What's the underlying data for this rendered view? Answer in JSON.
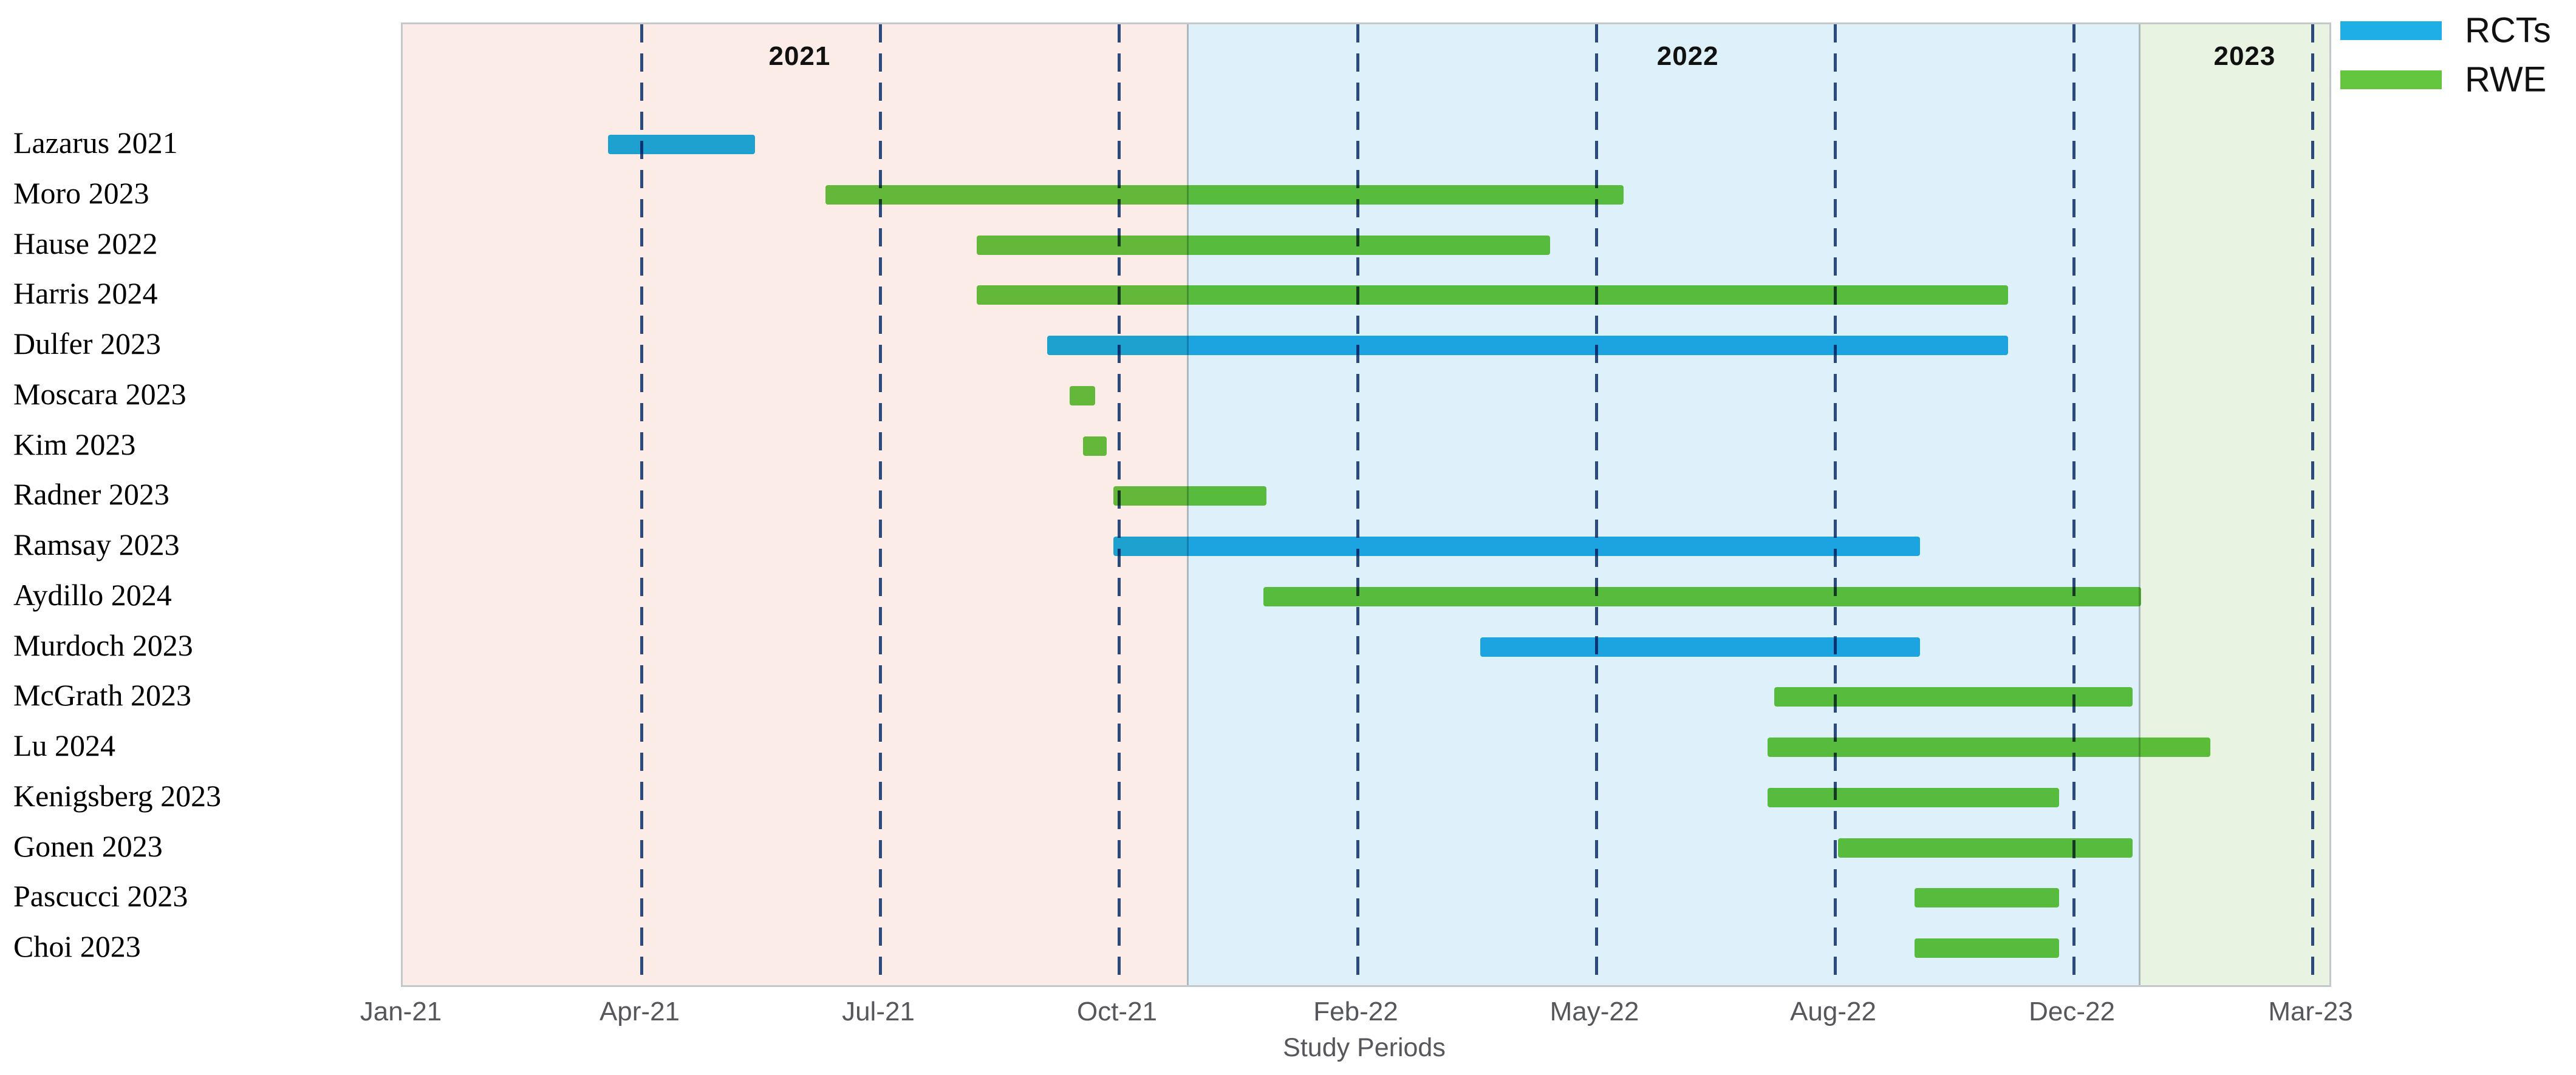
{
  "chart_data": {
    "type": "bar",
    "variant": "horizontal-gantt",
    "title": "",
    "xlabel": "Study Periods",
    "ylabel": "",
    "legend_position": "top-right",
    "grid": "vertical-dashed",
    "colors": {
      "rct_bar": "#1FAEE5",
      "rwe_bar": "#64C63F",
      "gridline": "#2B4A7E",
      "band_2021": "#FBECE7",
      "band_2022": "#DEF1FA",
      "band_2023": "#E8F3E2",
      "tick_text": "#55575C",
      "year_text": "#111111",
      "plot_border": "#C3C8CB"
    },
    "legend": [
      {
        "label": "RCTs",
        "type": "RCTs"
      },
      {
        "label": "RWE",
        "type": "RWE"
      }
    ],
    "x_ticks": [
      {
        "label": "Jan-21",
        "m": 0
      },
      {
        "label": "Apr-21",
        "m": 3
      },
      {
        "label": "Jul-21",
        "m": 6
      },
      {
        "label": "Oct-21",
        "m": 9
      },
      {
        "label": "Feb-22",
        "m": 13
      },
      {
        "label": "May-22",
        "m": 16
      },
      {
        "label": "Aug-22",
        "m": 19
      },
      {
        "label": "Dec-22",
        "m": 23
      },
      {
        "label": "Mar-23",
        "m": 26
      }
    ],
    "year_bands": [
      {
        "label": "2021",
        "start_pct": 0,
        "end_pct": 40.8,
        "label_center_pct": 20.6
      },
      {
        "label": "2022",
        "start_pct": 40.8,
        "end_pct": 90.2,
        "label_center_pct": 66.7
      },
      {
        "label": "2023",
        "start_pct": 90.2,
        "end_pct": 100,
        "label_center_pct": 95.6
      }
    ],
    "series": [
      {
        "study": "Lazarus 2021",
        "type": "RCTs",
        "start": "mid-Mar-2021",
        "end": "mid-May-2021",
        "start_m": 2.58,
        "end_m": 4.43
      },
      {
        "study": "Moro 2023",
        "type": "RWE",
        "start": "Jun-2021",
        "end": "May-2022",
        "start_m": 5.31,
        "end_m": 16.34
      },
      {
        "study": "Hause 2022",
        "type": "RWE",
        "start": "Aug-2021",
        "end": "mid-Apr-2022",
        "start_m": 7.21,
        "end_m": 15.42
      },
      {
        "study": "Harris 2024",
        "type": "RWE",
        "start": "Aug-2021",
        "end": "late-Oct-2022",
        "start_m": 7.21,
        "end_m": 21.9
      },
      {
        "study": "Dulfer 2023",
        "type": "RCTs",
        "start": "early-Sep-2021",
        "end": "late-Oct-2022",
        "start_m": 8.1,
        "end_m": 21.9
      },
      {
        "study": "Moscara 2023",
        "type": "RWE",
        "start": "mid-Sep-2021",
        "end": "mid-Sep-2021",
        "start_m": 8.38,
        "end_m": 8.7
      },
      {
        "study": "Kim 2023",
        "type": "RWE",
        "start": "late-Sep-2021",
        "end": "late-Sep-2021",
        "start_m": 8.55,
        "end_m": 8.85
      },
      {
        "study": "Radner 2023",
        "type": "RWE",
        "start": "Oct-2021",
        "end": "mid-Dec-2021",
        "start_m": 8.93,
        "end_m": 11.47
      },
      {
        "study": "Ramsay 2023",
        "type": "RCTs",
        "start": "Oct-2021",
        "end": "mid-Sep-2022",
        "start_m": 8.93,
        "end_m": 20.42
      },
      {
        "study": "Aydillo 2024",
        "type": "RWE",
        "start": "mid-Dec-2021",
        "end": "late-Dec-2022",
        "start_m": 11.42,
        "end_m": 23.85
      },
      {
        "study": "Murdoch 2023",
        "type": "RCTs",
        "start": "mid-Mar-2022",
        "end": "mid-Sep-2022",
        "start_m": 14.54,
        "end_m": 20.42
      },
      {
        "study": "McGrath 2023",
        "type": "RWE",
        "start": "Jul-2022",
        "end": "late-Dec-2022",
        "start_m": 18.24,
        "end_m": 23.74
      },
      {
        "study": "Lu 2024",
        "type": "RWE",
        "start": "Jul-2022",
        "end": "mid-Jan-2023",
        "start_m": 18.15,
        "end_m": 24.72
      },
      {
        "study": "Kenigsberg 2023",
        "type": "RWE",
        "start": "Jul-2022",
        "end": "late-Nov-2022",
        "start_m": 18.15,
        "end_m": 22.76
      },
      {
        "study": "Gonen 2023",
        "type": "RWE",
        "start": "Aug-2022",
        "end": "late-Dec-2022",
        "start_m": 19.05,
        "end_m": 23.74
      },
      {
        "study": "Pascucci 2023",
        "type": "RWE",
        "start": "Sep-2022",
        "end": "late-Nov-2022",
        "start_m": 20.33,
        "end_m": 22.76
      },
      {
        "study": "Choi 2023",
        "type": "RWE",
        "start": "Sep-2022",
        "end": "late-Nov-2022",
        "start_m": 20.33,
        "end_m": 22.76
      }
    ]
  }
}
